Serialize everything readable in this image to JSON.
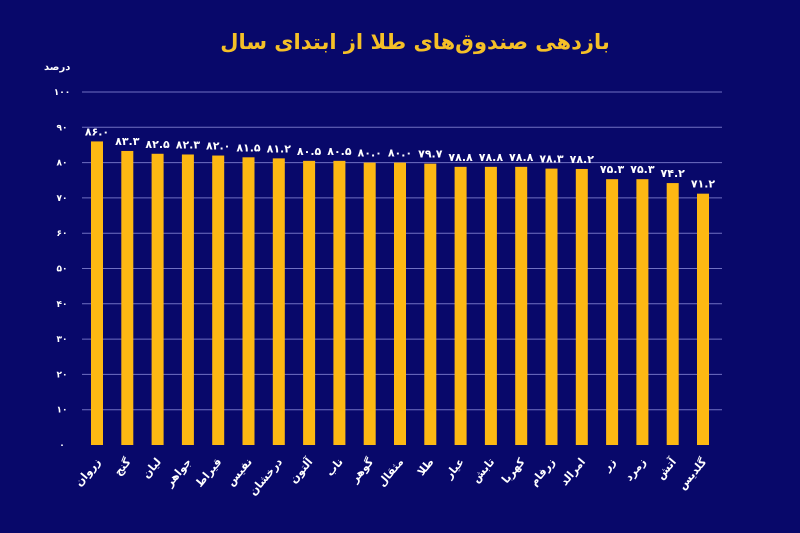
{
  "chart_data": {
    "type": "bar",
    "title": "بازدهی صندوق‌های طلا از ابتدای سال",
    "ylabel": "درصد",
    "xlabel": "",
    "ylim": [
      0,
      100
    ],
    "yticks": [
      0,
      10,
      20,
      30,
      40,
      50,
      60,
      70,
      80,
      90,
      100
    ],
    "ytick_labels": [
      "۰",
      "۱۰",
      "۲۰",
      "۳۰",
      "۴۰",
      "۵۰",
      "۶۰",
      "۷۰",
      "۸۰",
      "۹۰",
      "۱۰۰"
    ],
    "grid": true,
    "categories": [
      "زروان",
      "گنج",
      "لیان",
      "جواهر",
      "قیراط",
      "نفیس",
      "درخشان",
      "آلتون",
      "ناب",
      "گوهر",
      "مثقال",
      "طلا",
      "عیار",
      "تابش",
      "کهربا",
      "زرفام",
      "امرالد",
      "زر",
      "زمرد",
      "آتش",
      "گلدیس"
    ],
    "values": [
      86.0,
      83.3,
      82.5,
      82.3,
      82.0,
      81.5,
      81.2,
      80.5,
      80.5,
      80.0,
      80.0,
      79.7,
      78.8,
      78.8,
      78.8,
      78.3,
      78.2,
      75.3,
      75.3,
      74.2,
      71.2
    ],
    "value_labels": [
      "۸۶.۰",
      "۸۳.۳",
      "۸۲.۵",
      "۸۲.۳",
      "۸۲.۰",
      "۸۱.۵",
      "۸۱.۲",
      "۸۰.۵",
      "۸۰.۵",
      "۸۰.۰",
      "۸۰.۰",
      "۷۹.۷",
      "۷۸.۸",
      "۷۸.۸",
      "۷۸.۸",
      "۷۸.۳",
      "۷۸.۲",
      "۷۵.۳",
      "۷۵.۳",
      "۷۴.۲",
      "۷۱.۲"
    ],
    "colors": {
      "background": "#08086a",
      "bar": "#fdb813",
      "title": "#f5c027",
      "grid": "#8a8ad8",
      "text": "#ffffff"
    }
  }
}
